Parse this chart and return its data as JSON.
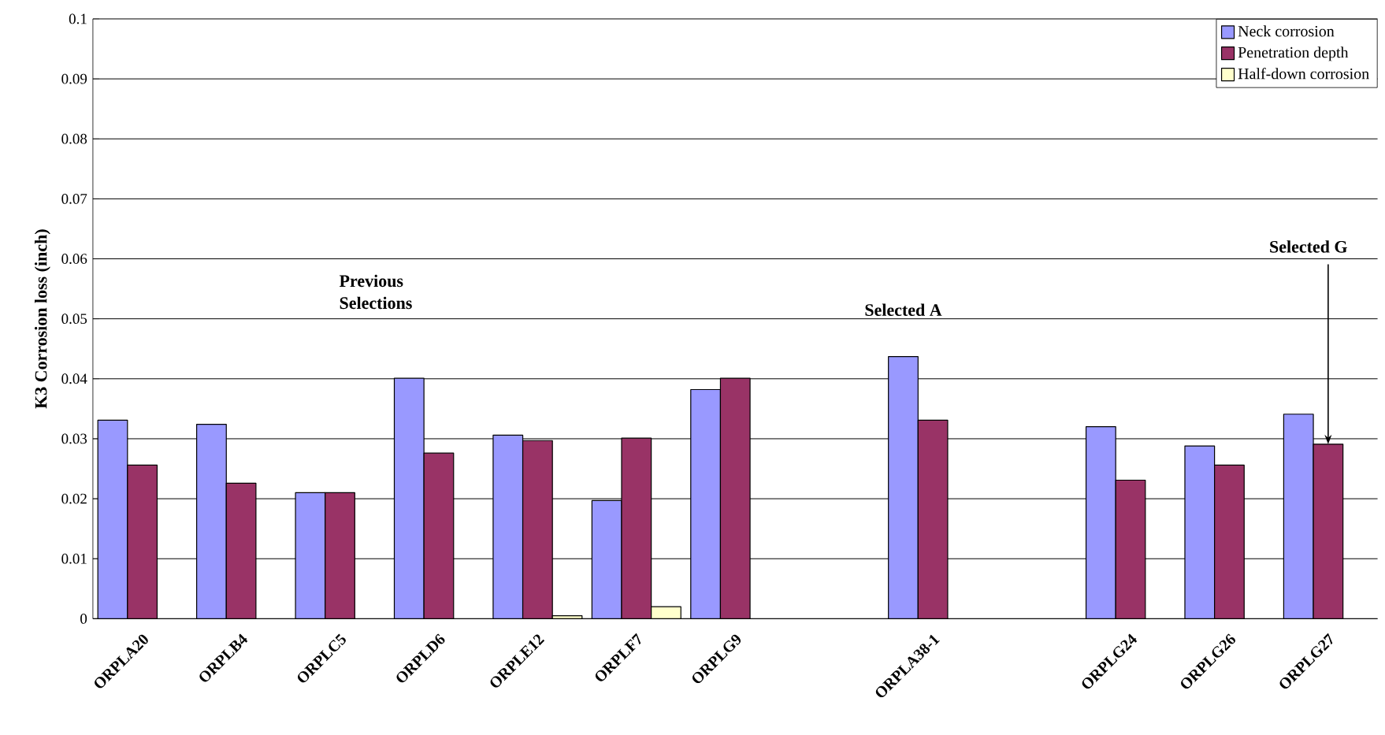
{
  "chart_data": {
    "type": "bar",
    "ylabel": "K3 Corrosion loss (inch)",
    "categories": [
      "ORPLA20",
      "ORPLB4",
      "ORPLC5",
      "ORPLD6",
      "ORPLE12",
      "ORPLF7",
      "ORPLG9",
      null,
      "ORPLA38-1",
      null,
      "ORPLG24",
      "ORPLG26",
      "ORPLG27"
    ],
    "series": [
      {
        "name": "Neck corrosion",
        "color": "#9999ff",
        "values": [
          0.0331,
          0.0324,
          0.021,
          0.0401,
          0.0306,
          0.0197,
          0.0382,
          null,
          0.0437,
          null,
          0.032,
          0.0288,
          0.0341
        ]
      },
      {
        "name": "Penetration depth",
        "color": "#993366",
        "values": [
          0.0256,
          0.0226,
          0.021,
          0.0276,
          0.0297,
          0.0301,
          0.0401,
          null,
          0.0331,
          null,
          0.0231,
          0.0256,
          0.0291
        ]
      },
      {
        "name": "Half-down corrosion",
        "color": "#ffffcc",
        "values": [
          null,
          null,
          null,
          null,
          0.0005,
          0.002,
          null,
          null,
          null,
          null,
          null,
          null,
          null
        ]
      }
    ],
    "ylim": [
      0,
      0.1
    ],
    "yticks": [
      0,
      0.01,
      0.02,
      0.03,
      0.04,
      0.05,
      0.06,
      0.07,
      0.08,
      0.09,
      0.1
    ],
    "grid": "y",
    "legend": "top right",
    "annotations": [
      "Previous Selections",
      "Selected A",
      {
        "text": "Selected G",
        "x": "ORPLG27",
        "y": 0.0291
      }
    ]
  }
}
